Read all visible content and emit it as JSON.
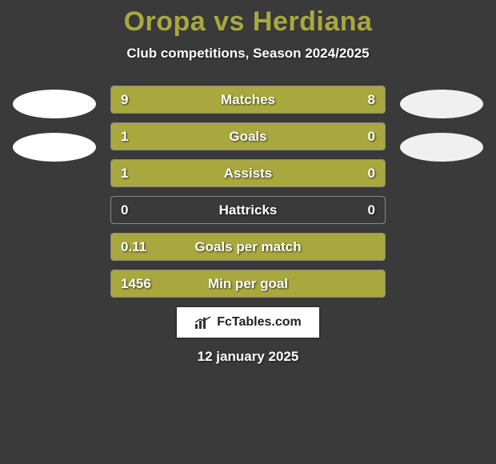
{
  "title": "Oropa vs Herdiana",
  "subtitle": "Club competitions, Season 2024/2025",
  "colors": {
    "background": "#3a3a3a",
    "accent": "#a9a83f",
    "player1_bar": "#a9a83f",
    "player2_bar": "#a9a83f",
    "text": "#ffffff",
    "badge_left": "#ffffff",
    "badge_right": "#f0f0f0",
    "border": "#888888"
  },
  "stats": [
    {
      "label": "Matches",
      "left_value": "9",
      "right_value": "8",
      "left_pct": 53,
      "right_pct": 47
    },
    {
      "label": "Goals",
      "left_value": "1",
      "right_value": "0",
      "left_pct": 77,
      "right_pct": 23
    },
    {
      "label": "Assists",
      "left_value": "1",
      "right_value": "0",
      "left_pct": 77,
      "right_pct": 23
    },
    {
      "label": "Hattricks",
      "left_value": "0",
      "right_value": "0",
      "left_pct": 0,
      "right_pct": 0
    },
    {
      "label": "Goals per match",
      "left_value": "0.11",
      "right_value": "",
      "left_pct": 100,
      "right_pct": 0
    },
    {
      "label": "Min per goal",
      "left_value": "1456",
      "right_value": "",
      "left_pct": 100,
      "right_pct": 0
    }
  ],
  "footer_brand": "FcTables.com",
  "date": "12 january 2025"
}
